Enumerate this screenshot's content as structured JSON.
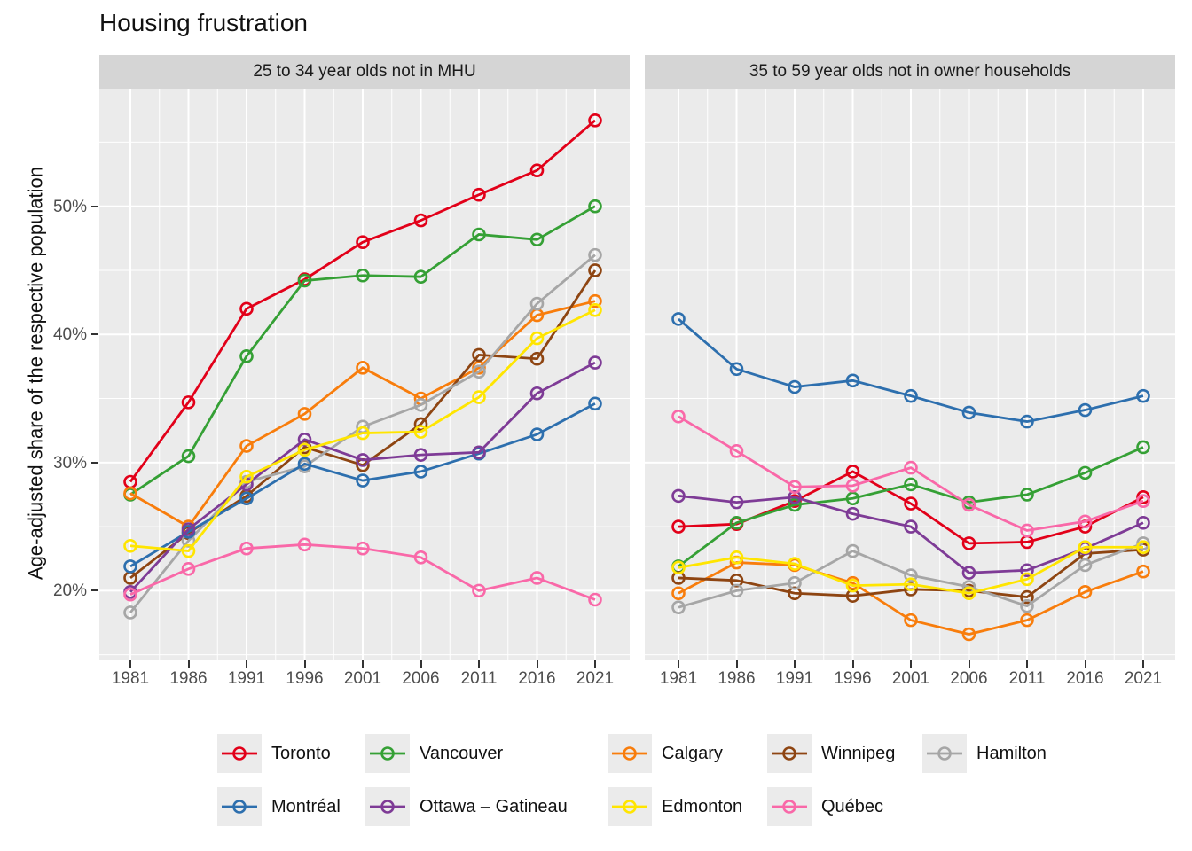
{
  "title": "Housing frustration",
  "ylabel": "Age-adjusted share of the respective population",
  "axes": {
    "y_tick_labels": [
      "50%",
      "40%",
      "30%",
      "20%"
    ],
    "y_tick_values": [
      50,
      40,
      30,
      20
    ],
    "y_minor_values": [
      55,
      45,
      35,
      25,
      15
    ],
    "x_tick_labels": [
      "1981",
      "1986",
      "1991",
      "1996",
      "2001",
      "2006",
      "2011",
      "2016",
      "2021"
    ]
  },
  "legend": {
    "rows": [
      [
        "Toronto",
        "Vancouver",
        "Calgary",
        "Winnipeg",
        "Hamilton"
      ],
      [
        "Montréal",
        "Ottawa – Gatineau",
        "Edmonton",
        "Québec"
      ]
    ]
  },
  "chart_data": {
    "type": "line",
    "x": [
      1981,
      1986,
      1991,
      1996,
      2001,
      2006,
      2011,
      2016,
      2021
    ],
    "title": "Housing frustration",
    "ylabel": "Age-adjusted share of the respective population",
    "ylim_shown": [
      14.6,
      59.2
    ],
    "grid": "white-on-gray, minor gridlines at 5% and half-decade steps",
    "legend_position": "bottom, two rows",
    "colors": {
      "Toronto": "#e20019",
      "Vancouver": "#35a035",
      "Calgary": "#f87d0c",
      "Winnipeg": "#8e4512",
      "Hamilton": "#a6a6a6",
      "Montréal": "#2d6fae",
      "Ottawa – Gatineau": "#7e3b96",
      "Edmonton": "#ffe500",
      "Québec": "#f968a8"
    },
    "panels": [
      {
        "label": "25 to 34 year olds not in MHU",
        "series": [
          {
            "name": "Toronto",
            "values": [
              28.5,
              34.7,
              42.0,
              44.3,
              47.2,
              48.9,
              50.9,
              52.8,
              56.7
            ]
          },
          {
            "name": "Vancouver",
            "values": [
              27.5,
              30.5,
              38.3,
              44.2,
              44.6,
              44.5,
              47.8,
              47.4,
              50.0
            ]
          },
          {
            "name": "Calgary",
            "values": [
              27.6,
              25.0,
              31.3,
              33.8,
              37.4,
              35.0,
              37.4,
              41.5,
              42.6
            ]
          },
          {
            "name": "Winnipeg",
            "values": [
              21.0,
              24.5,
              27.4,
              31.2,
              29.8,
              33.0,
              38.4,
              38.1,
              45.0
            ]
          },
          {
            "name": "Hamilton",
            "values": [
              18.3,
              23.9,
              28.5,
              29.7,
              32.8,
              34.5,
              37.1,
              42.4,
              46.2
            ]
          },
          {
            "name": "Montréal",
            "values": [
              21.9,
              24.6,
              27.2,
              29.9,
              28.6,
              29.3,
              30.7,
              32.2,
              34.6
            ]
          },
          {
            "name": "Ottawa – Gatineau",
            "values": [
              19.9,
              24.8,
              28.3,
              31.8,
              30.2,
              30.6,
              30.8,
              35.4,
              37.8
            ]
          },
          {
            "name": "Edmonton",
            "values": [
              23.5,
              23.1,
              28.9,
              31.0,
              32.3,
              32.4,
              35.1,
              39.7,
              41.9
            ]
          },
          {
            "name": "Québec",
            "values": [
              19.7,
              21.7,
              23.3,
              23.6,
              23.3,
              22.6,
              20.0,
              21.0,
              19.3
            ]
          }
        ]
      },
      {
        "label": "35 to 59 year olds not in owner households",
        "series": [
          {
            "name": "Toronto",
            "values": [
              25.0,
              25.2,
              27.0,
              29.3,
              26.8,
              23.7,
              23.8,
              25.0,
              27.3
            ]
          },
          {
            "name": "Vancouver",
            "values": [
              21.9,
              25.3,
              26.7,
              27.2,
              28.3,
              26.9,
              27.5,
              29.2,
              31.2
            ]
          },
          {
            "name": "Calgary",
            "values": [
              19.8,
              22.2,
              22.0,
              20.6,
              17.7,
              16.6,
              17.7,
              19.9,
              21.5
            ]
          },
          {
            "name": "Winnipeg",
            "values": [
              21.0,
              20.8,
              19.8,
              19.6,
              20.1,
              20.0,
              19.5,
              22.9,
              23.2
            ]
          },
          {
            "name": "Hamilton",
            "values": [
              18.7,
              20.0,
              20.6,
              23.1,
              21.2,
              20.3,
              18.8,
              22.0,
              23.7
            ]
          },
          {
            "name": "Montréal",
            "values": [
              41.2,
              37.3,
              35.9,
              36.4,
              35.2,
              33.9,
              33.2,
              34.1,
              35.2
            ]
          },
          {
            "name": "Ottawa – Gatineau",
            "values": [
              27.4,
              26.9,
              27.3,
              26.0,
              25.0,
              21.4,
              21.6,
              23.3,
              25.3
            ]
          },
          {
            "name": "Edmonton",
            "values": [
              21.8,
              22.6,
              22.1,
              20.4,
              20.5,
              19.8,
              20.9,
              23.4,
              23.4
            ]
          },
          {
            "name": "Québec",
            "values": [
              33.6,
              30.9,
              28.1,
              28.2,
              29.6,
              26.7,
              24.7,
              25.4,
              27.0
            ]
          }
        ]
      }
    ]
  }
}
